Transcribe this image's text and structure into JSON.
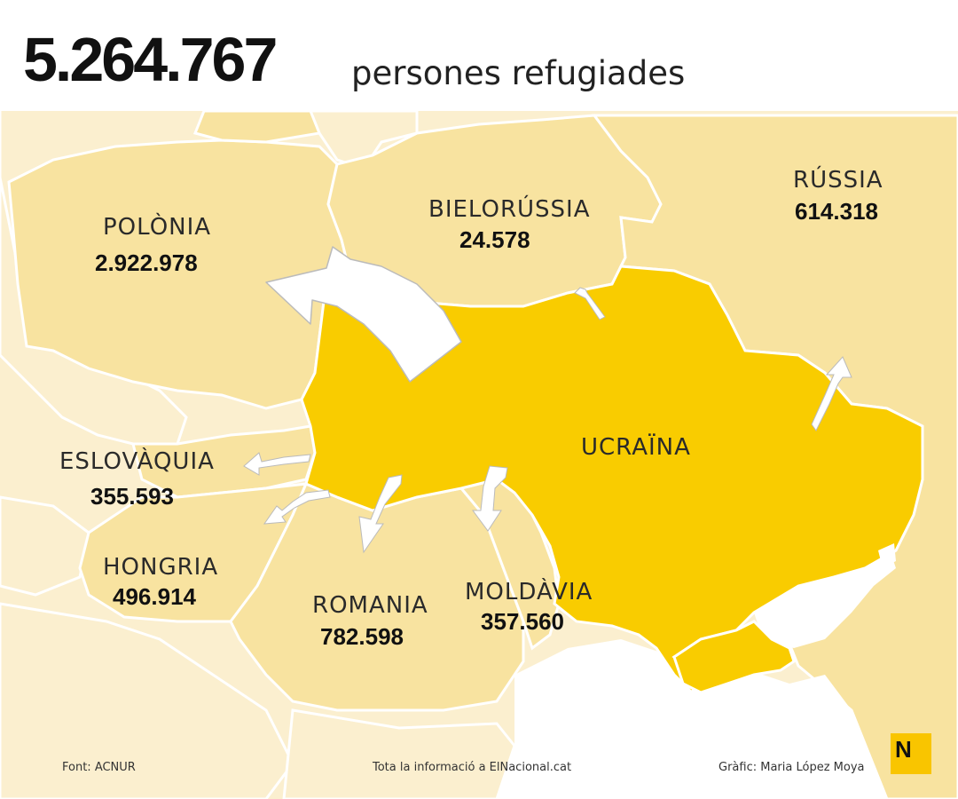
{
  "header": {
    "total": "5.264.767",
    "subtitle": "persones refugiades"
  },
  "countries": {
    "polonia": {
      "name": "POLÒNIA",
      "value": "2.922.978"
    },
    "bielorussia": {
      "name": "BIELORÚSSIA",
      "value": "24.578"
    },
    "russia": {
      "name": "RÚSSIA",
      "value": "614.318"
    },
    "ucraina": {
      "name": "UCRAÏNA"
    },
    "eslovaquia": {
      "name": "ESLOVÀQUIA",
      "value": "355.593"
    },
    "hongria": {
      "name": "HONGRIA",
      "value": "496.914"
    },
    "romania": {
      "name": "ROMANIA",
      "value": "782.598"
    },
    "moldavia": {
      "name": "MOLDÀVIA",
      "value": "357.560"
    }
  },
  "footer": {
    "source": "Font: ACNUR",
    "info": "Tota la informació a ElNacional.cat",
    "credit": "Gràfic: Maria López Moya"
  },
  "logo": {
    "letter": "N"
  },
  "colors": {
    "ukraine": "#f9cc00",
    "neighbor": "#f8e3a0",
    "far": "#fbefcf",
    "sea": "#ffffff",
    "border": "#ffffff"
  }
}
